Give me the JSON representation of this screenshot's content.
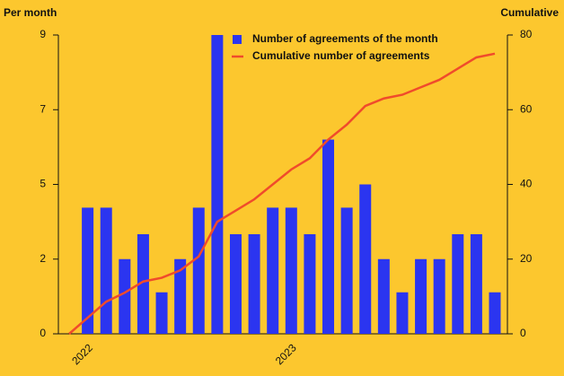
{
  "chart_data": {
    "type": "bar",
    "y_label": "Per month",
    "y2_label": "Cumulative",
    "categories": [
      null,
      "2022",
      null,
      null,
      null,
      null,
      null,
      null,
      null,
      null,
      null,
      null,
      "2023",
      null,
      null,
      null,
      null,
      null,
      null,
      null,
      null,
      null,
      null,
      null
    ],
    "series": [
      {
        "name": "Number of agreements of the month",
        "type": "bar",
        "color": "#2b35f0",
        "axis": "y",
        "values": [
          null,
          3.8,
          3.8,
          2.25,
          3,
          1.25,
          2.25,
          3.8,
          9,
          3,
          3,
          3.8,
          3.8,
          3,
          5.85,
          3.8,
          4.5,
          2.25,
          1.25,
          2.25,
          2.25,
          3,
          3,
          1.25
        ]
      },
      {
        "name": "Cumulative number of agreements",
        "type": "line",
        "color": "#f04b2b",
        "axis": "y2",
        "values": [
          0,
          4.3,
          8.6,
          11,
          14,
          15,
          17,
          20.7,
          30,
          33,
          36,
          40,
          44,
          47,
          52,
          56,
          61,
          63,
          64,
          66,
          68,
          71,
          74,
          75
        ]
      }
    ],
    "ylim": [
      0,
      9
    ],
    "yticks": [
      0,
      {
        "value": 2.25,
        "label": "2"
      },
      {
        "value": 4.5,
        "label": "5"
      },
      {
        "value": 6.75,
        "label": "7"
      },
      9
    ],
    "y2lim": [
      0,
      80
    ],
    "y2ticks": [
      0,
      20,
      40,
      60,
      80
    ]
  }
}
